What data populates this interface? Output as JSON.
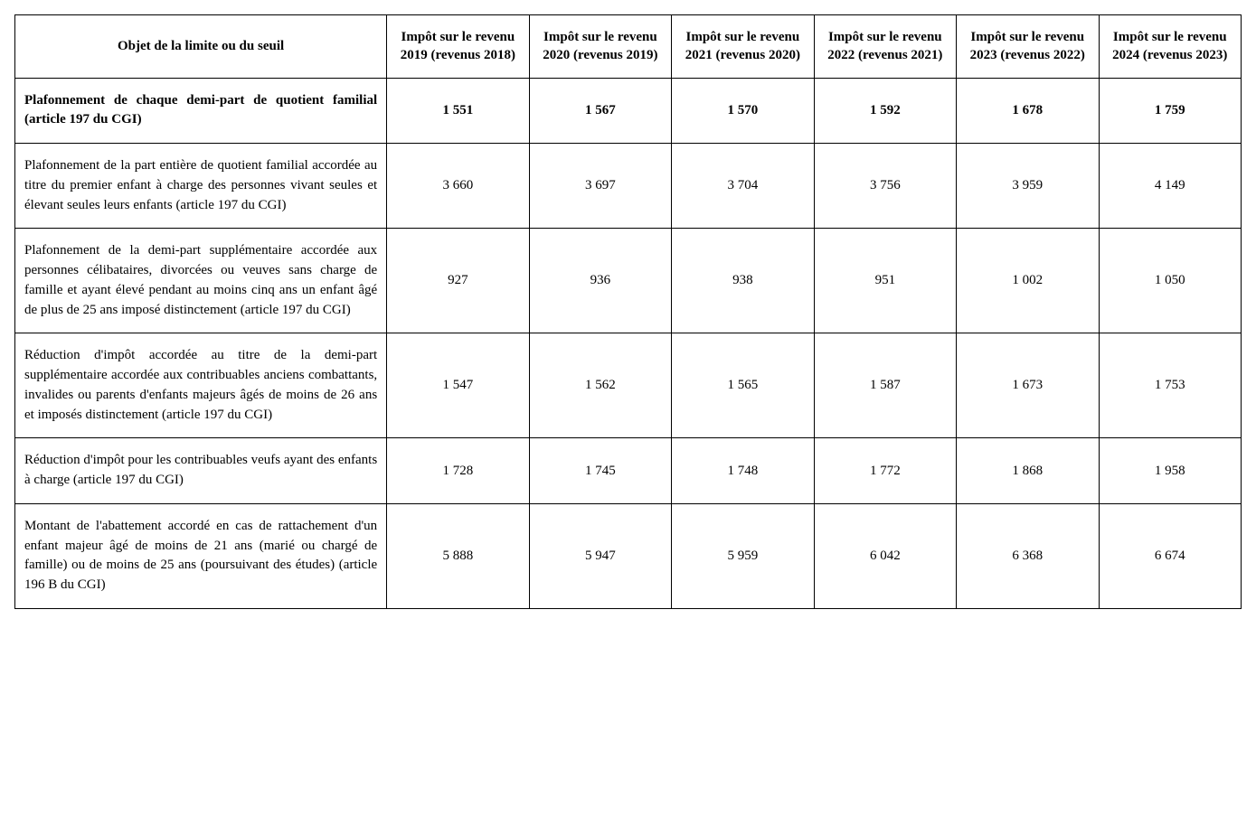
{
  "table": {
    "header": {
      "desc": "Objet de la limite ou du seuil",
      "years": [
        "Impôt sur le revenu 2019 (revenus 2018)",
        "Impôt sur le revenu 2020 (revenus 2019)",
        "Impôt sur le revenu 2021 (revenus 2020)",
        "Impôt sur le revenu 2022 (revenus 2021)",
        "Impôt sur le revenu 2023 (revenus 2022)",
        "Impôt sur le revenu 2024 (revenus 2023)"
      ]
    },
    "rows": [
      {
        "bold": true,
        "desc": "Plafonnement de chaque demi-part de quotient familial (article 197 du CGI)",
        "values": [
          "1 551",
          "1 567",
          "1 570",
          "1 592",
          "1 678",
          "1 759"
        ]
      },
      {
        "bold": false,
        "desc": "Plafonnement de la part entière de quotient familial accordée au titre du premier enfant à charge des personnes vivant seules et élevant seules leurs enfants (article 197 du CGI)",
        "values": [
          "3 660",
          "3 697",
          "3 704",
          "3 756",
          "3 959",
          "4 149"
        ]
      },
      {
        "bold": false,
        "desc": "Plafonnement de la demi-part supplémentaire accordée aux personnes célibataires, divorcées ou veuves sans charge de famille et ayant élevé pendant au moins cinq ans un enfant âgé de plus de 25 ans imposé distinctement (article 197 du CGI)",
        "values": [
          "927",
          "936",
          "938",
          "951",
          "1 002",
          "1 050"
        ]
      },
      {
        "bold": false,
        "desc": "Réduction d'impôt accordée au titre de la demi-part supplémentaire accordée aux contribuables anciens combattants, invalides ou parents d'enfants majeurs âgés de moins de 26 ans et imposés distinctement (article 197 du CGI)",
        "values": [
          "1 547",
          "1 562",
          "1 565",
          "1 587",
          "1 673",
          "1 753"
        ]
      },
      {
        "bold": false,
        "desc": "Réduction d'impôt pour les contribuables veufs ayant des enfants à charge (article 197 du CGI)",
        "values": [
          "1 728",
          "1 745",
          "1 748",
          "1 772",
          "1 868",
          "1 958"
        ]
      },
      {
        "bold": false,
        "desc": "Montant de l'abattement accordé en cas de rattachement d'un enfant majeur âgé de moins de 21 ans (marié ou chargé de famille) ou de moins de 25 ans (poursuivant des études) (article 196 B du CGI)",
        "values": [
          "5 888",
          "5 947",
          "5 959",
          "6 042",
          "6 368",
          "6 674"
        ]
      }
    ]
  }
}
